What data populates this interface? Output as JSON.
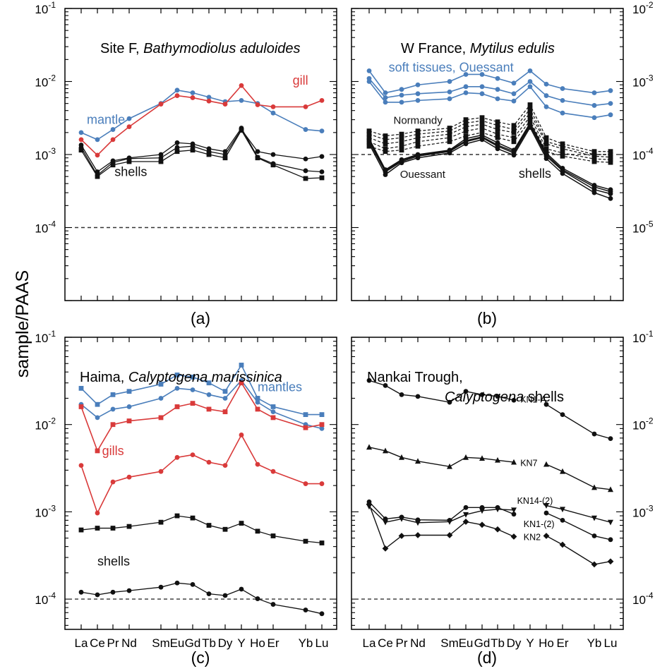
{
  "figure": {
    "ylabel": "sample/PAAS",
    "panel_labels": [
      "(a)",
      "(b)",
      "(c)",
      "(d)"
    ]
  },
  "colors": {
    "blue": "#4a7ebb",
    "red": "#d93a3a",
    "black": "#111111",
    "dash": "#333333"
  },
  "chart_data": [
    {
      "panel": "(a)",
      "type": "line",
      "title": "Site F, ",
      "title_italic": "Bathymodiolus aduloides",
      "y_scale": "log",
      "ylim": [
        1e-05,
        0.1
      ],
      "yticks": [
        {
          "value": 0.0001,
          "base": "10",
          "exp": "-4"
        },
        {
          "value": 0.001,
          "base": "10",
          "exp": "-3"
        },
        {
          "value": 0.01,
          "base": "10",
          "exp": "-2"
        },
        {
          "value": 0.1,
          "base": "10",
          "exp": "-1"
        }
      ],
      "x_elements": [
        "La",
        "Ce",
        "Pr",
        "Nd",
        "Sm",
        "Eu",
        "Gd",
        "Tb",
        "Dy",
        "Y",
        "Ho",
        "Er",
        "Yb",
        "Lu"
      ],
      "reference_line": 0.0001,
      "annotations": [
        {
          "text": "mantle",
          "at": [
            0.35,
            0.003
          ],
          "color": "blue"
        },
        {
          "text": "gill",
          "at": [
            11.6,
            0.0103
          ],
          "color": "red"
        },
        {
          "text": "shells",
          "at": [
            2.1,
            0.00058
          ],
          "color": "black"
        }
      ],
      "series": [
        {
          "group": "mantle",
          "color": "blue",
          "marker": "circle",
          "width": 1.6,
          "values": [
            0.002,
            0.0016,
            0.0022,
            0.0031,
            0.005,
            0.0076,
            0.007,
            0.0061,
            0.0053,
            0.0055,
            0.005,
            0.0037,
            0.0022,
            0.0021
          ]
        },
        {
          "group": "gill",
          "color": "red",
          "marker": "circle",
          "width": 1.6,
          "values": [
            0.0016,
            0.00098,
            0.0016,
            0.0024,
            0.0049,
            0.0064,
            0.006,
            0.0054,
            0.0049,
            0.0088,
            0.0048,
            0.0045,
            0.0045,
            0.0055
          ]
        },
        {
          "group": "shells",
          "color": "black",
          "marker": "circle",
          "width": 1.3,
          "values": [
            0.00135,
            0.00058,
            0.00082,
            0.0009,
            0.001,
            0.00145,
            0.0014,
            0.0012,
            0.0011,
            0.0023,
            0.00092,
            0.00075,
            0.0006,
            0.00058
          ]
        },
        {
          "group": "shells",
          "color": "black",
          "marker": "circle",
          "width": 1.3,
          "values": [
            0.00125,
            0.00052,
            0.00078,
            0.00088,
            0.0009,
            0.00125,
            0.0013,
            0.0011,
            0.001,
            0.0022,
            0.0011,
            0.001,
            0.00087,
            0.00094
          ]
        },
        {
          "group": "shells",
          "color": "black",
          "marker": "square",
          "width": 1.3,
          "values": [
            0.00115,
            0.0005,
            0.00072,
            0.0008,
            0.0008,
            0.0011,
            0.00115,
            0.001,
            0.0009,
            0.00215,
            0.0009,
            0.00072,
            0.00047,
            0.00048
          ]
        }
      ]
    },
    {
      "panel": "(b)",
      "type": "line",
      "title": "W France, ",
      "title_italic": "Mytilus edulis",
      "y_scale": "log",
      "y_axis_side": "right",
      "ylim": [
        1e-06,
        0.01
      ],
      "yticks": [
        {
          "value": 1e-05,
          "base": "10",
          "exp": "-5"
        },
        {
          "value": 0.0001,
          "base": "10",
          "exp": "-4"
        },
        {
          "value": 0.001,
          "base": "10",
          "exp": "-3"
        },
        {
          "value": 0.01,
          "base": "10",
          "exp": "-2"
        }
      ],
      "x_elements": [
        "La",
        "Ce",
        "Pr",
        "Nd",
        "Sm",
        "Eu",
        "Gd",
        "Tb",
        "Dy",
        "Y",
        "Ho",
        "Er",
        "Yb",
        "Lu"
      ],
      "reference_line": 0.0001,
      "annotations": [
        {
          "text": "soft tissues, Ouessant",
          "at": [
            1.2,
            0.00156
          ],
          "color": "blue"
        },
        {
          "text": "Normandy",
          "at": [
            1.5,
            0.0003
          ],
          "color": "black",
          "small": true
        },
        {
          "text": "Ouessant",
          "at": [
            1.9,
            5.5e-05
          ],
          "color": "black",
          "small": true
        },
        {
          "text": "shells",
          "at": [
            8.3,
            5.5e-05
          ],
          "color": "black"
        }
      ],
      "series": [
        {
          "group": "soft tissues",
          "color": "blue",
          "marker": "circle",
          "width": 1.6,
          "values": [
            0.0014,
            0.0007,
            0.00078,
            0.0009,
            0.001,
            0.00125,
            0.00125,
            0.0011,
            0.00095,
            0.0014,
            0.00092,
            0.0008,
            0.0007,
            0.00075
          ]
        },
        {
          "group": "soft tissues",
          "color": "blue",
          "marker": "circle",
          "width": 1.6,
          "values": [
            0.0011,
            0.0006,
            0.00065,
            0.00068,
            0.00072,
            0.00085,
            0.00085,
            0.00078,
            0.00068,
            0.001,
            0.00064,
            0.00055,
            0.00047,
            0.0005
          ]
        },
        {
          "group": "soft tissues",
          "color": "blue",
          "marker": "circle",
          "width": 1.6,
          "values": [
            0.001,
            0.00052,
            0.00052,
            0.00055,
            0.00058,
            0.0007,
            0.00068,
            0.00058,
            0.00054,
            0.00085,
            0.00045,
            0.00037,
            0.00032,
            0.00035
          ]
        },
        {
          "group": "Normandy shells",
          "color": "black",
          "marker": "square",
          "width": 1.2,
          "dashed": true,
          "values": [
            0.00021,
            0.00018,
            0.00019,
            0.00021,
            0.00023,
            0.0003,
            0.00032,
            0.00028,
            0.00025,
            0.00048,
            0.00017,
            0.00014,
            0.00011,
            0.00011
          ]
        },
        {
          "group": "Normandy shells",
          "color": "black",
          "marker": "square",
          "width": 1.2,
          "dashed": true,
          "values": [
            0.00019,
            0.00016,
            0.00017,
            0.00019,
            0.00021,
            0.00027,
            0.00029,
            0.00025,
            0.00022,
            0.00042,
            0.00015,
            0.00013,
            0.0001,
            0.0001
          ]
        },
        {
          "group": "Normandy shells",
          "color": "black",
          "marker": "square",
          "width": 1.2,
          "dashed": true,
          "values": [
            0.00017,
            0.00014,
            0.00015,
            0.00017,
            0.00019,
            0.00024,
            0.00026,
            0.00022,
            0.0002,
            0.00037,
            0.00014,
            0.00012,
            9.5e-05,
            9.2e-05
          ]
        },
        {
          "group": "Normandy shells",
          "color": "black",
          "marker": "square",
          "width": 1.2,
          "dashed": true,
          "values": [
            0.00015,
            0.00012,
            0.00013,
            0.00015,
            0.00017,
            0.00021,
            0.00023,
            0.00019,
            0.00017,
            0.00033,
            0.00012,
            0.000105,
            8.7e-05,
            8.5e-05
          ]
        },
        {
          "group": "Normandy shells",
          "color": "black",
          "marker": "square",
          "width": 1.2,
          "dashed": true,
          "values": [
            0.00013,
            0.00011,
            0.000115,
            0.00013,
            0.00015,
            0.00018,
            0.0002,
            0.00017,
            0.00015,
            0.00029,
            0.00011,
            9.5e-05,
            8e-05,
            7.8e-05
          ]
        },
        {
          "group": "Ouessant shells",
          "color": "black",
          "marker": "circle",
          "width": 1.5,
          "values": [
            0.000165,
            6.2e-05,
            8.5e-05,
            0.0001,
            0.000115,
            0.000165,
            0.000185,
            0.000145,
            0.000115,
            0.00027,
            0.000105,
            6.5e-05,
            3.8e-05,
            3.3e-05
          ]
        },
        {
          "group": "Ouessant shells",
          "color": "black",
          "marker": "circle",
          "width": 1.5,
          "values": [
            0.00015,
            5.8e-05,
            8e-05,
            9.5e-05,
            0.00011,
            0.00015,
            0.00017,
            0.00013,
            0.000105,
            0.00025,
            9.5e-05,
            6e-05,
            3.3e-05,
            2.9e-05
          ]
        },
        {
          "group": "Ouessant shells",
          "color": "black",
          "marker": "circle",
          "width": 1.5,
          "values": [
            0.00014,
            5.3e-05,
            7.7e-05,
            9e-05,
            0.000105,
            0.00014,
            0.00016,
            0.00012,
            9.8e-05,
            0.000235,
            8.8e-05,
            5.5e-05,
            3e-05,
            2.5e-05
          ]
        },
        {
          "group": "Ouessant shells",
          "color": "black",
          "marker": "circle",
          "width": 1.5,
          "values": [
            0.00016,
            6e-05,
            8.3e-05,
            9.8e-05,
            0.000112,
            0.000155,
            0.000175,
            0.000135,
            0.00011,
            0.00026,
            0.0001,
            6.2e-05,
            3.6e-05,
            3.1e-05
          ]
        }
      ]
    },
    {
      "panel": "(c)",
      "type": "line",
      "title": "Haima, ",
      "title_italic": "Calyptogena marissinica",
      "y_scale": "log",
      "ylim": [
        4.5e-05,
        0.1
      ],
      "yticks": [
        {
          "value": 0.0001,
          "base": "10",
          "exp": "-4"
        },
        {
          "value": 0.001,
          "base": "10",
          "exp": "-3"
        },
        {
          "value": 0.01,
          "base": "10",
          "exp": "-2"
        },
        {
          "value": 0.1,
          "base": "10",
          "exp": "-1"
        }
      ],
      "x_elements": [
        "La",
        "Ce",
        "Pr",
        "Nd",
        "Sm",
        "Eu",
        "Gd",
        "Tb",
        "Dy",
        "Y",
        "Ho",
        "Er",
        "Yb",
        "Lu"
      ],
      "x_tick_labels": [
        "La",
        "Ce",
        "Pr",
        "Nd",
        "Sm",
        "Eu",
        "Gd",
        "Tb",
        "Dy",
        "Y",
        "Ho",
        "Er",
        "Yb",
        "Lu"
      ],
      "reference_line": 0.0001,
      "annotations": [
        {
          "text": "mantles",
          "at": [
            10.0,
            0.027
          ],
          "color": "blue"
        },
        {
          "text": "gills",
          "at": [
            1.3,
            0.005
          ],
          "color": "red"
        },
        {
          "text": "shells",
          "at": [
            1.0,
            0.00027
          ],
          "color": "black"
        }
      ],
      "series": [
        {
          "group": "mantles",
          "color": "blue",
          "marker": "square",
          "width": 1.6,
          "values": [
            0.026,
            0.017,
            0.022,
            0.024,
            0.029,
            0.037,
            0.035,
            0.03,
            0.024,
            0.048,
            0.02,
            0.016,
            0.013,
            0.013
          ]
        },
        {
          "group": "mantles",
          "color": "blue",
          "marker": "circle",
          "width": 1.6,
          "values": [
            0.017,
            0.012,
            0.015,
            0.016,
            0.02,
            0.026,
            0.025,
            0.022,
            0.02,
            0.032,
            0.018,
            0.014,
            0.01,
            0.009
          ]
        },
        {
          "group": "gills",
          "color": "red",
          "marker": "square",
          "width": 1.6,
          "values": [
            0.016,
            0.005,
            0.01,
            0.011,
            0.012,
            0.016,
            0.0175,
            0.015,
            0.014,
            0.03,
            0.015,
            0.012,
            0.0092,
            0.01
          ]
        },
        {
          "group": "gills",
          "color": "red",
          "marker": "circle",
          "width": 1.6,
          "values": [
            0.0034,
            0.00097,
            0.0022,
            0.0025,
            0.0029,
            0.0042,
            0.0045,
            0.0037,
            0.0034,
            0.0076,
            0.0035,
            0.0029,
            0.0021,
            0.0021
          ]
        },
        {
          "group": "shells",
          "color": "black",
          "marker": "square",
          "width": 1.3,
          "values": [
            0.00062,
            0.00065,
            0.00065,
            0.00068,
            0.00076,
            0.0009,
            0.00085,
            0.0007,
            0.00063,
            0.00074,
            0.0006,
            0.00053,
            0.00046,
            0.00044
          ]
        },
        {
          "group": "shells",
          "color": "black",
          "marker": "circle",
          "width": 1.3,
          "values": [
            0.00012,
            0.000112,
            0.00012,
            0.000125,
            0.000137,
            0.000153,
            0.000147,
            0.000115,
            0.00011,
            0.00013,
            0.000101,
            8.7e-05,
            7.5e-05,
            6.8e-05
          ]
        }
      ]
    },
    {
      "panel": "(d)",
      "type": "line",
      "title": "Nankai Trough,",
      "title2": "",
      "title2_italic": "Calyptogena",
      "title2_rest": " shells",
      "y_scale": "log",
      "y_axis_side": "right",
      "ylim": [
        4.5e-05,
        0.1
      ],
      "yticks": [
        {
          "value": 0.0001,
          "base": "10",
          "exp": "-4"
        },
        {
          "value": 0.001,
          "base": "10",
          "exp": "-3"
        },
        {
          "value": 0.01,
          "base": "10",
          "exp": "-2"
        },
        {
          "value": 0.1,
          "base": "10",
          "exp": "-1"
        }
      ],
      "x_elements": [
        "La",
        "Ce",
        "Pr",
        "Nd",
        "Sm",
        "Eu",
        "Gd",
        "Tb",
        "Dy",
        "Y",
        "Ho",
        "Er",
        "Yb",
        "Lu"
      ],
      "x_tick_labels": [
        "La",
        "Ce",
        "Pr",
        "Nd",
        "Sm",
        "Eu",
        "Gd",
        "Tb",
        "Dy",
        "Y",
        "Ho",
        "Er",
        "Yb",
        "Lu"
      ],
      "reference_line": 0.0001,
      "series": [
        {
          "name": "KN1-A",
          "color": "black",
          "marker": "circle",
          "width": 1.4,
          "label_at": [
            8.4,
            0.0193
          ],
          "values": [
            0.032,
            0.028,
            0.022,
            0.021,
            0.018,
            0.024,
            0.022,
            0.021,
            0.019,
            null,
            0.017,
            0.013,
            0.0078,
            0.0069
          ]
        },
        {
          "name": "KN7",
          "color": "black",
          "marker": "triangle",
          "width": 1.4,
          "label_at": [
            8.4,
            0.0036
          ],
          "values": [
            0.0055,
            0.005,
            0.0042,
            0.0038,
            0.0033,
            0.0042,
            0.0041,
            0.0039,
            0.0037,
            null,
            0.0035,
            0.0029,
            0.0019,
            0.0018
          ]
        },
        {
          "name": "KN14-(2)",
          "color": "black",
          "marker": "triangle-down",
          "width": 1.4,
          "label_at": [
            8.2,
            0.00133
          ],
          "values": [
            0.00115,
            0.00076,
            0.00083,
            0.00075,
            0.00077,
            0.00093,
            0.00103,
            0.00107,
            0.00105,
            null,
            0.00118,
            0.00107,
            0.00085,
            0.00076
          ]
        },
        {
          "name": "KN1-(2)",
          "color": "black",
          "marker": "circle",
          "width": 1.4,
          "label_at": [
            8.6,
            0.00072
          ],
          "values": [
            0.0013,
            0.00083,
            0.00087,
            0.00081,
            0.0008,
            0.00112,
            0.00112,
            0.00112,
            0.00094,
            null,
            0.00097,
            0.0008,
            0.00053,
            0.00048
          ]
        },
        {
          "name": "KN2",
          "color": "black",
          "marker": "diamond",
          "width": 1.4,
          "label_at": [
            8.6,
            0.00051
          ],
          "values": [
            0.00122,
            0.00038,
            0.00053,
            0.00054,
            0.00054,
            0.00077,
            0.00071,
            0.00063,
            0.00052,
            null,
            0.00053,
            0.00042,
            0.00025,
            0.00027
          ]
        }
      ]
    }
  ]
}
